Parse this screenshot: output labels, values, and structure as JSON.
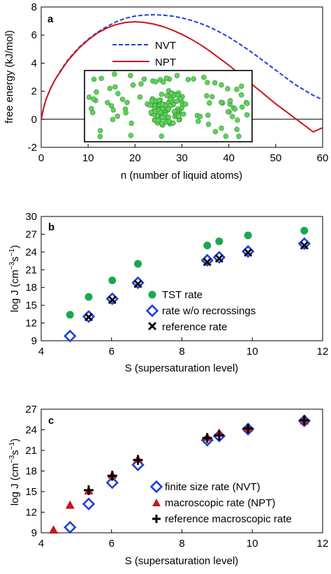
{
  "chart_data": [
    {
      "type": "line",
      "panel_label": "a",
      "xlabel": "n (number of liquid atoms)",
      "ylabel": "free energy (kJ/mol)",
      "xlim": [
        0,
        60
      ],
      "ylim": [
        -2,
        8
      ],
      "xticks": [
        0,
        10,
        20,
        30,
        40,
        50,
        60
      ],
      "yticks": [
        -2,
        0,
        2,
        4,
        6,
        8
      ],
      "legend_position": "center-left",
      "inset": "snapshot of a liquid cluster of green atoms surrounded by vapor atoms",
      "series": [
        {
          "name": "NVT",
          "color": "#1f3fd6",
          "style": "dashed",
          "x": [
            0,
            0.5,
            1,
            2,
            3,
            4,
            5,
            6,
            8,
            10,
            12,
            14,
            16,
            18,
            20,
            22,
            24,
            26,
            28,
            30,
            32,
            34,
            36,
            38,
            40,
            42,
            44,
            46,
            48,
            50,
            52,
            54,
            56,
            58,
            60
          ],
          "y": [
            0,
            0.8,
            1.4,
            2.2,
            2.85,
            3.4,
            3.9,
            4.35,
            5.1,
            5.7,
            6.2,
            6.6,
            6.95,
            7.2,
            7.35,
            7.43,
            7.45,
            7.42,
            7.35,
            7.22,
            7.05,
            6.82,
            6.55,
            6.22,
            5.85,
            5.43,
            4.98,
            4.5,
            4.0,
            3.5,
            3.0,
            2.5,
            2.1,
            1.7,
            1.4
          ]
        },
        {
          "name": "NPT",
          "color": "#c8161d",
          "style": "solid",
          "x": [
            0,
            0.5,
            1,
            2,
            3,
            4,
            5,
            6,
            8,
            10,
            12,
            14,
            16,
            18,
            20,
            22,
            24,
            26,
            28,
            30,
            32,
            34,
            36,
            38,
            40,
            42,
            44,
            46,
            48,
            50,
            52,
            54,
            56,
            58,
            60
          ],
          "y": [
            0,
            0.8,
            1.4,
            2.2,
            2.85,
            3.35,
            3.85,
            4.3,
            5.05,
            5.65,
            6.15,
            6.5,
            6.75,
            6.9,
            6.95,
            6.9,
            6.78,
            6.6,
            6.35,
            6.05,
            5.7,
            5.3,
            4.85,
            4.35,
            3.85,
            3.3,
            2.75,
            2.2,
            1.65,
            1.1,
            0.6,
            0.1,
            -0.4,
            -0.9,
            -0.6
          ]
        }
      ]
    },
    {
      "type": "scatter",
      "panel_label": "b",
      "xlabel": "S (supersaturation level)",
      "ylabel_main": "log J (cm",
      "ylabel_exp1": "−3",
      "ylabel_mid": "s",
      "ylabel_exp2": "−1",
      "ylabel_end": ")",
      "xlim": [
        4,
        12
      ],
      "ylim": [
        9,
        30
      ],
      "xticks": [
        4,
        6,
        8,
        10,
        12
      ],
      "yticks": [
        9,
        12,
        15,
        18,
        21,
        24,
        27,
        30
      ],
      "legend_position": "bottom-center",
      "series": [
        {
          "name": "TST rate",
          "marker": "circle",
          "color": "#1aa84f",
          "x": [
            4.82,
            5.35,
            6.02,
            6.75,
            8.72,
            9.06,
            9.88,
            11.48
          ],
          "y": [
            13.4,
            16.4,
            19.2,
            22.0,
            25.1,
            25.8,
            26.8,
            27.6
          ]
        },
        {
          "name": "rate w/o recrossings",
          "marker": "diamond",
          "color": "#1f3fd6",
          "x": [
            4.82,
            5.35,
            6.02,
            6.75,
            8.72,
            9.06,
            9.88,
            11.48
          ],
          "y": [
            9.8,
            13.1,
            16.1,
            18.8,
            22.6,
            23.1,
            24.1,
            25.4
          ]
        },
        {
          "name": "reference rate",
          "marker": "x",
          "color": "#000000",
          "x": [
            5.35,
            6.02,
            6.75,
            8.72,
            9.06,
            9.88,
            11.48
          ],
          "y": [
            13.0,
            15.9,
            18.6,
            22.3,
            22.9,
            23.9,
            25.1
          ]
        }
      ]
    },
    {
      "type": "scatter",
      "panel_label": "c",
      "xlabel": "S (supersaturation level)",
      "ylabel_main": "log J (cm",
      "ylabel_exp1": "−3",
      "ylabel_mid": "s",
      "ylabel_exp2": "−1",
      "ylabel_end": ")",
      "xlim": [
        4,
        12
      ],
      "ylim": [
        9,
        27
      ],
      "xticks": [
        4,
        6,
        8,
        10,
        12
      ],
      "yticks": [
        9,
        12,
        15,
        18,
        21,
        24,
        27
      ],
      "legend_position": "bottom-right",
      "series": [
        {
          "name": "finite size rate (NVT)",
          "marker": "diamond",
          "color": "#1f3fd6",
          "x": [
            4.82,
            5.35,
            6.02,
            6.75,
            8.72,
            9.06,
            9.88,
            11.48
          ],
          "y": [
            9.8,
            13.2,
            16.3,
            18.9,
            22.5,
            23.1,
            24.1,
            25.3
          ]
        },
        {
          "name": "macroscopic rate (NPT)",
          "marker": "triangle",
          "color": "#c8161d",
          "x": [
            4.35,
            4.82,
            5.35,
            6.02,
            6.75,
            8.72,
            9.06,
            9.88,
            11.48
          ],
          "y": [
            9.4,
            13.0,
            15.1,
            17.4,
            19.7,
            22.9,
            23.5,
            24.2,
            25.3
          ]
        },
        {
          "name": "reference macroscopic rate",
          "marker": "plus",
          "color": "#000000",
          "x": [
            5.35,
            6.02,
            6.75,
            8.72,
            9.06,
            9.88,
            11.48
          ],
          "y": [
            15.2,
            17.3,
            19.6,
            22.8,
            23.2,
            24.2,
            25.4
          ]
        }
      ]
    }
  ]
}
